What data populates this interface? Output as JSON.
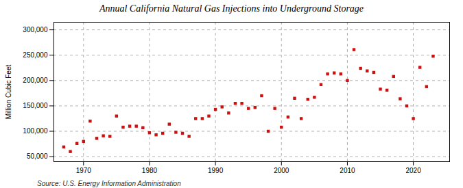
{
  "chart_data": {
    "type": "scatter",
    "title": "Annual California Natural Gas Injections into Underground Storage",
    "ylabel": "Million Cubic Feet",
    "source": "Source: U.S. Energy Information Administration",
    "color": "#cc1111",
    "marker": "square",
    "grid": true,
    "xlim": [
      1965.5,
      2025.5
    ],
    "xticks": [
      1970,
      1980,
      1990,
      2000,
      2010,
      2020
    ],
    "ylim": [
      40000,
      315000
    ],
    "yticks": [
      {
        "value": 50000,
        "label": "50,000"
      },
      {
        "value": 100000,
        "label": "100,000"
      },
      {
        "value": 150000,
        "label": "150,000"
      },
      {
        "value": 200000,
        "label": "200,000"
      },
      {
        "value": 250000,
        "label": "250,000"
      },
      {
        "value": 300000,
        "label": "300,000"
      }
    ],
    "x": [
      1967,
      1968,
      1969,
      1970,
      1971,
      1972,
      1973,
      1974,
      1975,
      1976,
      1977,
      1978,
      1979,
      1980,
      1981,
      1982,
      1983,
      1984,
      1985,
      1986,
      1987,
      1988,
      1989,
      1990,
      1991,
      1992,
      1993,
      1994,
      1995,
      1996,
      1997,
      1998,
      1999,
      2000,
      2001,
      2002,
      2003,
      2004,
      2005,
      2006,
      2007,
      2008,
      2009,
      2010,
      2011,
      2012,
      2013,
      2014,
      2015,
      2016,
      2017,
      2018,
      2019,
      2020,
      2021,
      2022,
      2023
    ],
    "values": [
      69000,
      60000,
      76000,
      80000,
      120000,
      86000,
      91000,
      90000,
      130000,
      108000,
      110000,
      110000,
      107000,
      97000,
      93000,
      96000,
      114000,
      98000,
      96000,
      90000,
      125000,
      125000,
      130000,
      143000,
      148000,
      136000,
      155000,
      155000,
      145000,
      147000,
      170000,
      100000,
      145000,
      108000,
      128000,
      165000,
      125000,
      163000,
      167000,
      192000,
      213000,
      215000,
      213000,
      200000,
      261000,
      224000,
      219000,
      216000,
      183000,
      181000,
      208000,
      164000,
      150000,
      125000,
      226000,
      188000,
      248000
    ]
  }
}
